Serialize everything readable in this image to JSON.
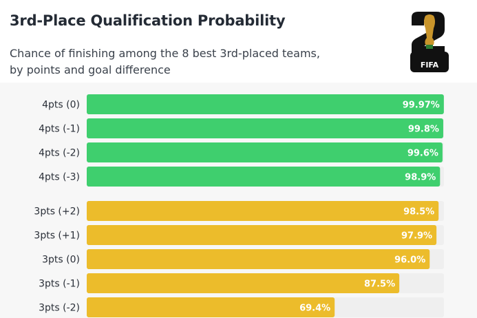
{
  "title": "3rd-Place Qualification Probability",
  "subtitle_line1": "Chance of finishing among the 8 best 3rd-placed teams,",
  "subtitle_line2": "by points and goal difference",
  "logo": {
    "icon": "world-cup-26-logo-icon",
    "text": "FIFA"
  },
  "colors": {
    "four_pts": "#3fcf6e",
    "three_pts": "#ecbc2b",
    "track": "#efefef"
  },
  "chart_data": {
    "type": "bar",
    "orientation": "horizontal",
    "title": "3rd-Place Qualification Probability",
    "subtitle": "Chance of finishing among the 8 best 3rd-placed teams, by points and goal difference",
    "xlim": [
      0,
      100
    ],
    "unit": "%",
    "grid": false,
    "categories": [
      "4pts (0)",
      "4pts (-1)",
      "4pts (-2)",
      "4pts (-3)",
      "3pts (+2)",
      "3pts (+1)",
      "3pts (0)",
      "3pts (-1)",
      "3pts (-2)"
    ],
    "values": [
      99.97,
      99.8,
      99.6,
      98.9,
      98.5,
      97.9,
      96.0,
      87.5,
      69.4
    ],
    "value_labels": [
      "99.97%",
      "99.8%",
      "99.6%",
      "98.9%",
      "98.5%",
      "97.9%",
      "96.0%",
      "87.5%",
      "69.4%"
    ],
    "groups": [
      "4pts",
      "4pts",
      "4pts",
      "4pts",
      "3pts",
      "3pts",
      "3pts",
      "3pts",
      "3pts"
    ]
  }
}
